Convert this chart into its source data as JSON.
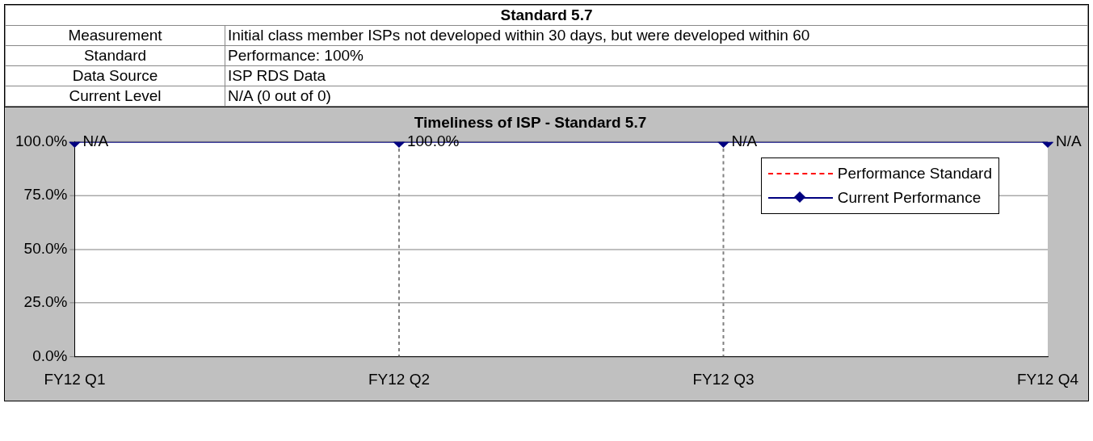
{
  "chart_data": [
    {
      "type": "other",
      "title": "Standard 5.7",
      "annotations": [
        "Measurement",
        "Initial class member ISPs not developed within 30 days, but were developed within 60",
        "Standard",
        "Performance: 100%",
        "Data Source",
        "ISP RDS Data",
        "Current Level",
        "N/A (0 out of 0)"
      ]
    },
    {
      "type": "line",
      "title": "Timeliness of ISP - Standard 5.7",
      "categories": [
        "FY12 Q1",
        "FY12 Q2",
        "FY12 Q3",
        "FY12 Q4"
      ],
      "series": [
        {
          "name": "Performance Standard",
          "color": "#ff0000",
          "values": [
            null,
            null,
            null,
            null
          ],
          "line_style": "dashed",
          "marker": "none"
        },
        {
          "name": "Current Performance",
          "color": "#000080",
          "values": [
            100,
            100,
            100,
            100
          ],
          "marker": "diamond",
          "line_style": "solid",
          "value_labels": [
            "N/A",
            "100.0%",
            "N/A",
            "N/A"
          ]
        }
      ],
      "ylim": [
        0,
        100
      ],
      "yticks": [
        {
          "value": 0,
          "label": "0.0%"
        },
        {
          "value": 25,
          "label": "25.0%"
        },
        {
          "value": 50,
          "label": "50.0%"
        },
        {
          "value": 75,
          "label": "75.0%"
        },
        {
          "value": 100,
          "label": "100.0%"
        }
      ],
      "grid": true,
      "legend": "top right"
    }
  ]
}
